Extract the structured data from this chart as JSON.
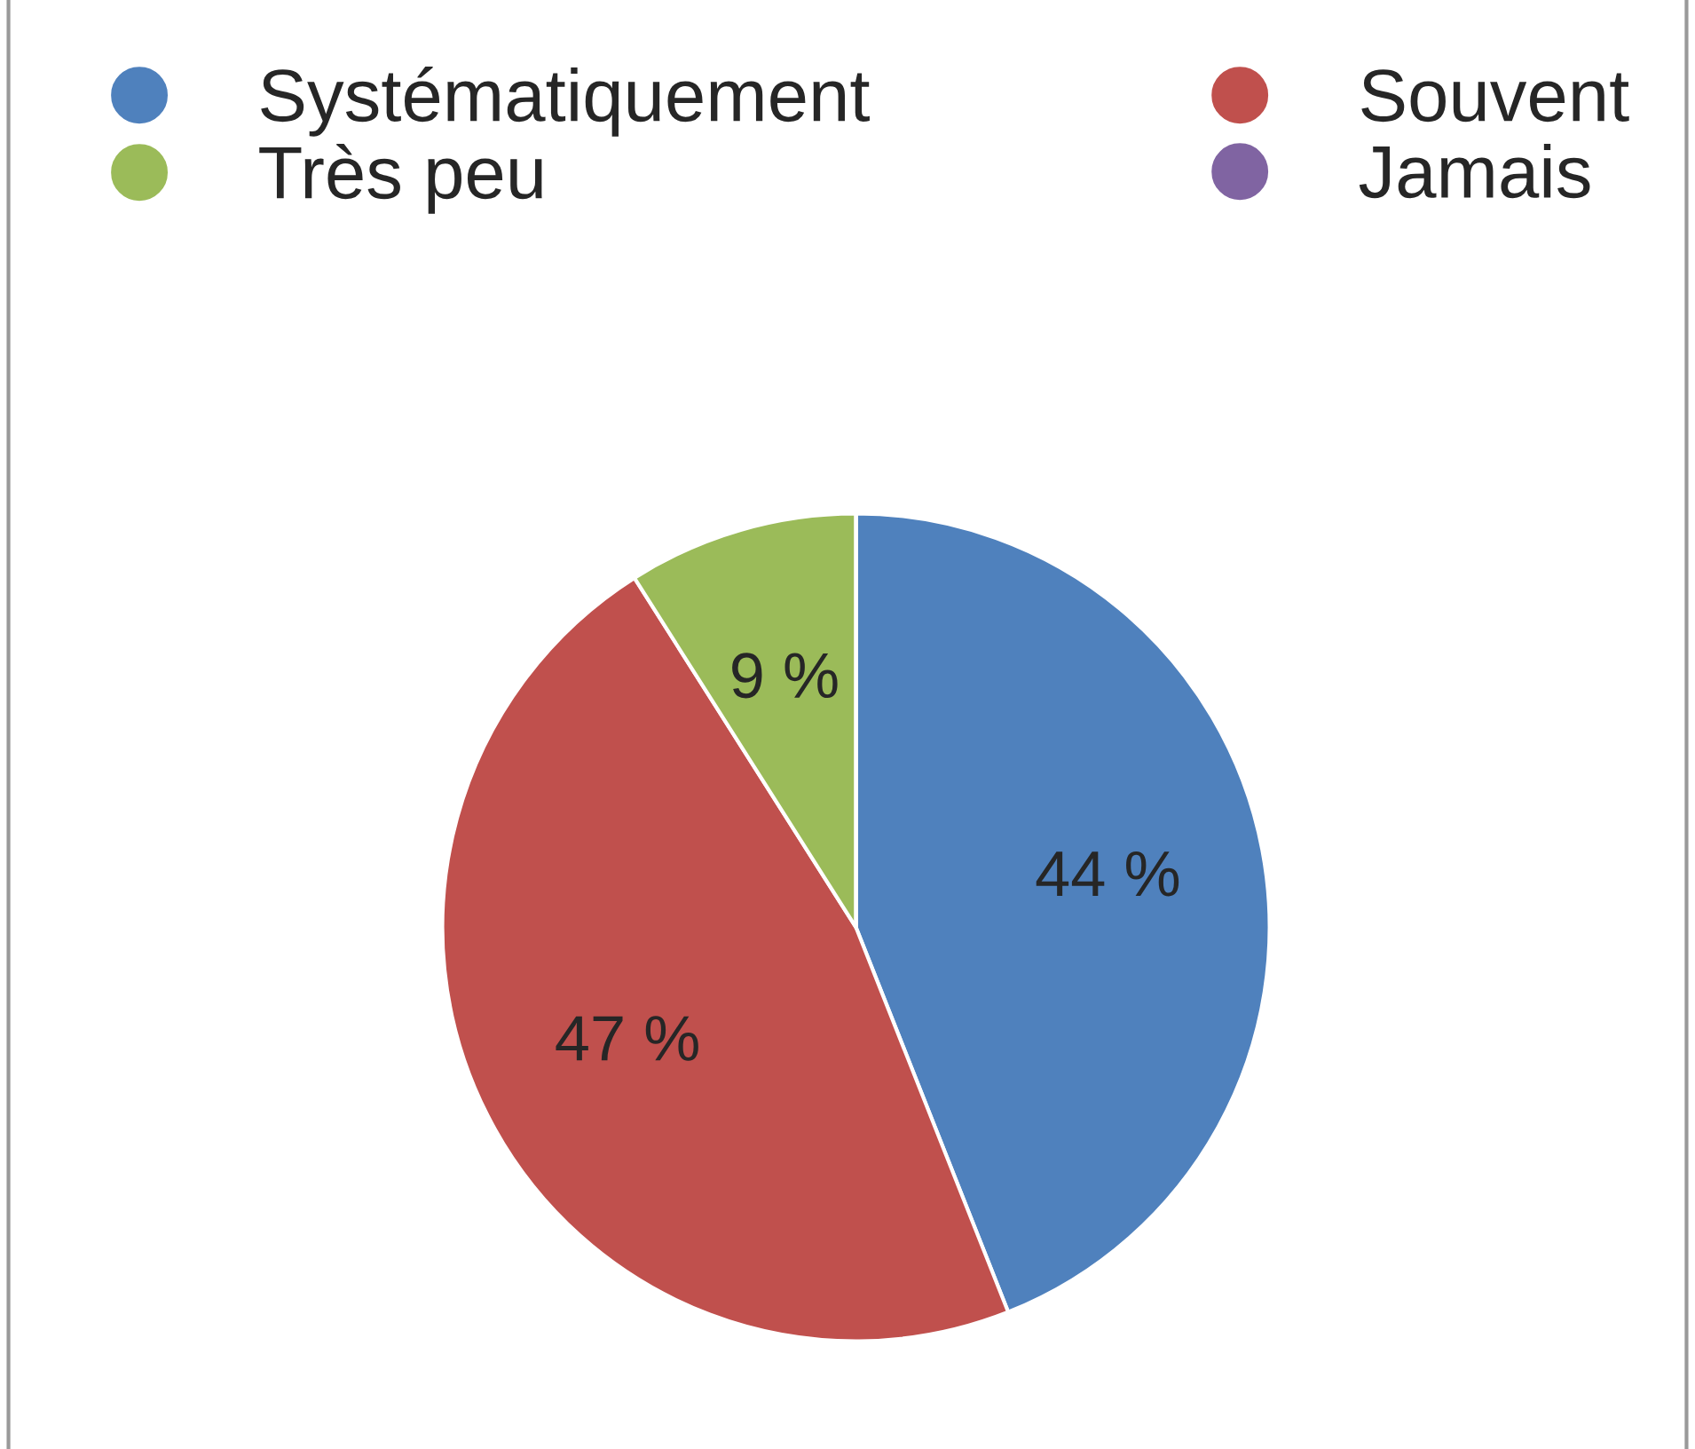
{
  "chart_data": {
    "type": "pie",
    "categories": [
      "Systématiquement",
      "Souvent",
      "Très peu",
      "Jamais"
    ],
    "values": [
      44,
      47,
      9,
      0
    ],
    "colors": [
      "#4f81bd",
      "#c0504d",
      "#9bbb59",
      "#8064a2"
    ],
    "value_labels": [
      "44 %",
      "47 %",
      "9 %",
      null
    ],
    "legend": "top"
  }
}
